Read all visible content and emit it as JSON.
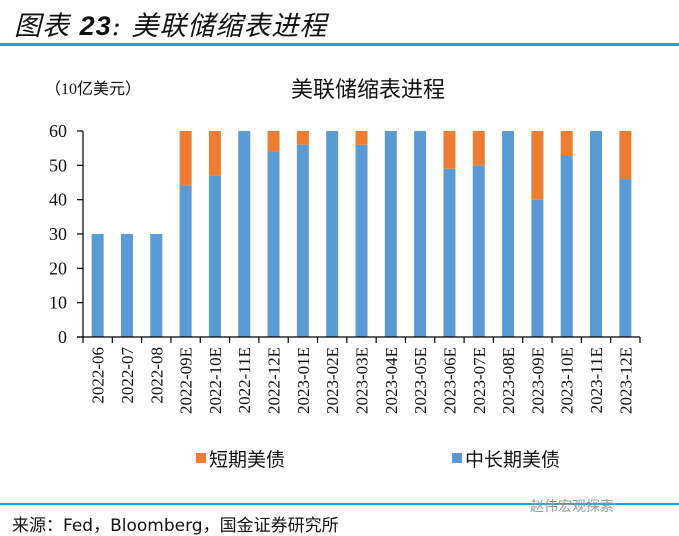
{
  "figure": {
    "label": "图表",
    "number": "23",
    "colon": ":",
    "title": "美联储缩表进程"
  },
  "source": "来源：Fed，Bloomberg，国金证券研究所",
  "watermark": "赵伟宏观探索",
  "colors": {
    "short": "#ed7d31",
    "long": "#5b9bd5",
    "rule": "#1aa3e0"
  },
  "chart_data": {
    "type": "bar",
    "stacked": true,
    "title": "美联储缩表进程",
    "unit_label": "（10亿美元）",
    "xlabel": "",
    "ylabel": "（10亿美元）",
    "ylim": [
      0,
      60
    ],
    "yticks": [
      0,
      10,
      20,
      30,
      40,
      50,
      60
    ],
    "grid": false,
    "legend_position": "bottom",
    "categories": [
      "2022-06",
      "2022-07",
      "2022-08",
      "2022-09E",
      "2022-10E",
      "2022-11E",
      "2022-12E",
      "2023-01E",
      "2023-02E",
      "2023-03E",
      "2023-04E",
      "2023-05E",
      "2023-06E",
      "2023-07E",
      "2023-08E",
      "2023-09E",
      "2023-10E",
      "2023-11E",
      "2023-12E"
    ],
    "series": [
      {
        "name": "中长期美债",
        "color": "#5b9bd5",
        "values": [
          30,
          30,
          30,
          44,
          47,
          60,
          54,
          56,
          60,
          56,
          60,
          60,
          49,
          50,
          60,
          40,
          53,
          60,
          46
        ]
      },
      {
        "name": "短期美债",
        "color": "#ed7d31",
        "values": [
          0,
          0,
          0,
          16,
          13,
          0,
          6,
          4,
          0,
          4,
          0,
          0,
          11,
          10,
          0,
          20,
          7,
          0,
          14
        ]
      }
    ],
    "legend": [
      {
        "name": "短期美债",
        "color": "#ed7d31"
      },
      {
        "name": "中长期美债",
        "color": "#5b9bd5"
      }
    ]
  }
}
